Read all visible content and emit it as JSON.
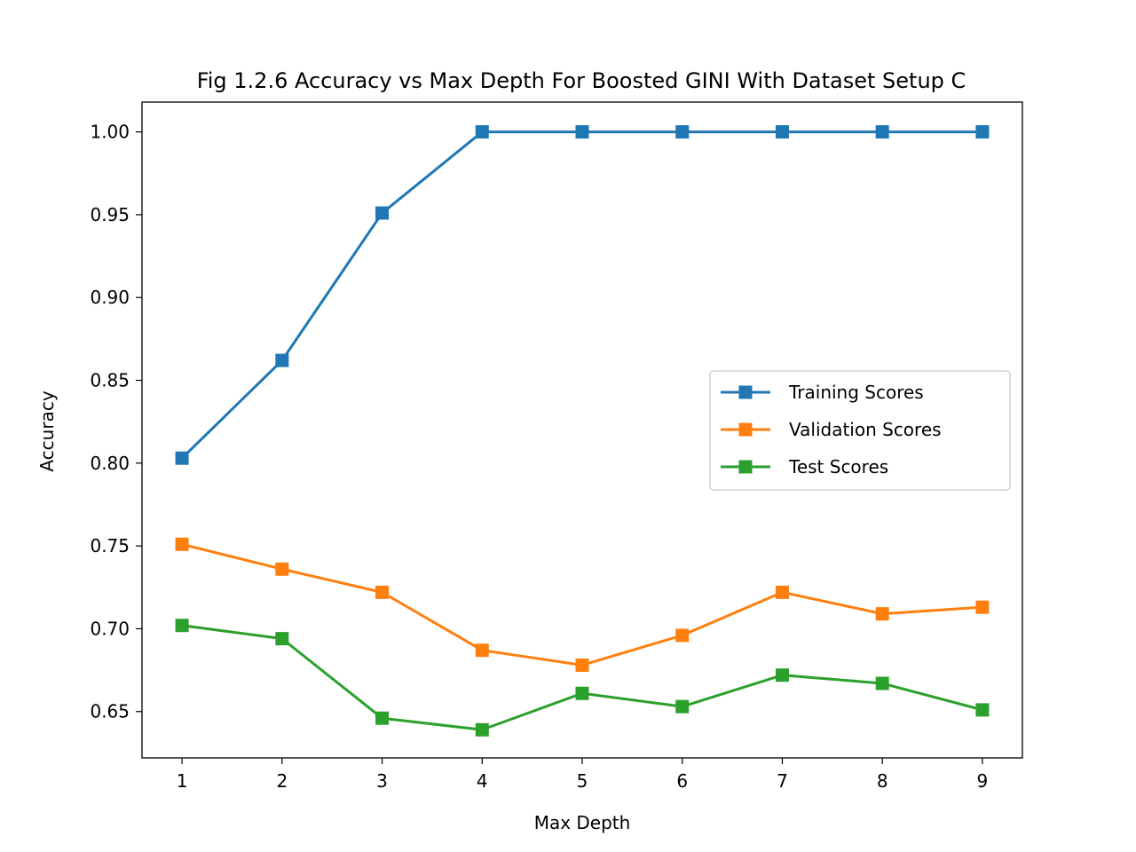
{
  "chart_data": {
    "type": "line",
    "title": "Fig 1.2.6 Accuracy vs Max Depth For Boosted GINI With Dataset Setup C",
    "xlabel": "Max Depth",
    "ylabel": "Accuracy",
    "x": [
      1,
      2,
      3,
      4,
      5,
      6,
      7,
      8,
      9
    ],
    "x_ticks": [
      "1",
      "2",
      "3",
      "4",
      "5",
      "6",
      "7",
      "8",
      "9"
    ],
    "y_ticks": [
      "0.65",
      "0.70",
      "0.75",
      "0.80",
      "0.85",
      "0.90",
      "0.95",
      "1.00"
    ],
    "xlim": [
      0.6,
      9.4
    ],
    "ylim": [
      0.622,
      1.018
    ],
    "grid": false,
    "legend_position": "center-right",
    "marker": "square",
    "series": [
      {
        "name": "Training Scores",
        "color": "#1f77b4",
        "values": [
          0.803,
          0.862,
          0.951,
          1.0,
          1.0,
          1.0,
          1.0,
          1.0,
          1.0
        ]
      },
      {
        "name": "Validation Scores",
        "color": "#ff7f0e",
        "values": [
          0.751,
          0.736,
          0.722,
          0.687,
          0.678,
          0.696,
          0.722,
          0.709,
          0.713
        ]
      },
      {
        "name": "Test Scores",
        "color": "#2ca02c",
        "values": [
          0.702,
          0.694,
          0.646,
          0.639,
          0.661,
          0.653,
          0.672,
          0.667,
          0.651
        ]
      }
    ]
  }
}
